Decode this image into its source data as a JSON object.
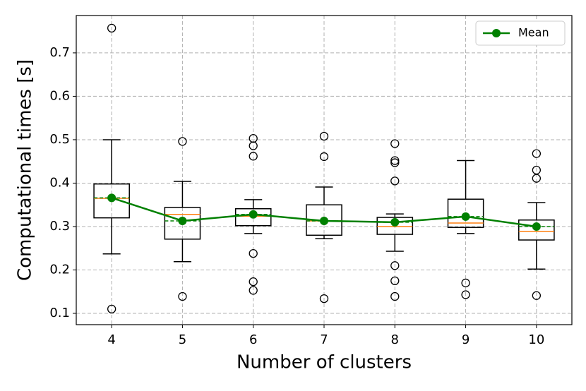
{
  "chart_data": {
    "type": "box",
    "x_label": "Number of clusters",
    "y_label": "Computational times [s]",
    "x": [
      4,
      5,
      6,
      7,
      8,
      9,
      10
    ],
    "xlim": [
      3.5,
      10.5
    ],
    "xticks": [
      4,
      5,
      6,
      7,
      8,
      9,
      10
    ],
    "ylim": [
      0.074,
      0.786
    ],
    "yticks": [
      0.1,
      0.2,
      0.3,
      0.4,
      0.5,
      0.6,
      0.7
    ],
    "grid": true,
    "legend_position": "upper right",
    "box_color": "#000000",
    "median_color": "#ff7f0e",
    "boxes": [
      {
        "whislo": 0.237,
        "q1": 0.32,
        "med": 0.365,
        "q3": 0.398,
        "whishi": 0.5,
        "fliers": [
          0.757,
          0.11
        ]
      },
      {
        "whislo": 0.219,
        "q1": 0.271,
        "med": 0.328,
        "q3": 0.344,
        "whishi": 0.404,
        "fliers": [
          0.496,
          0.139
        ]
      },
      {
        "whislo": 0.284,
        "q1": 0.302,
        "med": 0.324,
        "q3": 0.341,
        "whishi": 0.362,
        "fliers": [
          0.503,
          0.486,
          0.462,
          0.238,
          0.173,
          0.153
        ]
      },
      {
        "whislo": 0.272,
        "q1": 0.28,
        "med": 0.313,
        "q3": 0.35,
        "whishi": 0.391,
        "fliers": [
          0.508,
          0.461,
          0.134
        ]
      },
      {
        "whislo": 0.243,
        "q1": 0.282,
        "med": 0.3,
        "q3": 0.321,
        "whishi": 0.329,
        "fliers": [
          0.491,
          0.452,
          0.447,
          0.405,
          0.21,
          0.175,
          0.139
        ]
      },
      {
        "whislo": 0.284,
        "q1": 0.298,
        "med": 0.308,
        "q3": 0.363,
        "whishi": 0.452,
        "fliers": [
          0.17,
          0.143
        ]
      },
      {
        "whislo": 0.202,
        "q1": 0.269,
        "med": 0.289,
        "q3": 0.315,
        "whishi": 0.355,
        "fliers": [
          0.468,
          0.43,
          0.411,
          0.141
        ]
      }
    ],
    "series": [
      {
        "name": "Mean",
        "color": "#008000",
        "values": [
          0.366,
          0.313,
          0.328,
          0.313,
          0.31,
          0.323,
          0.3
        ]
      }
    ]
  }
}
